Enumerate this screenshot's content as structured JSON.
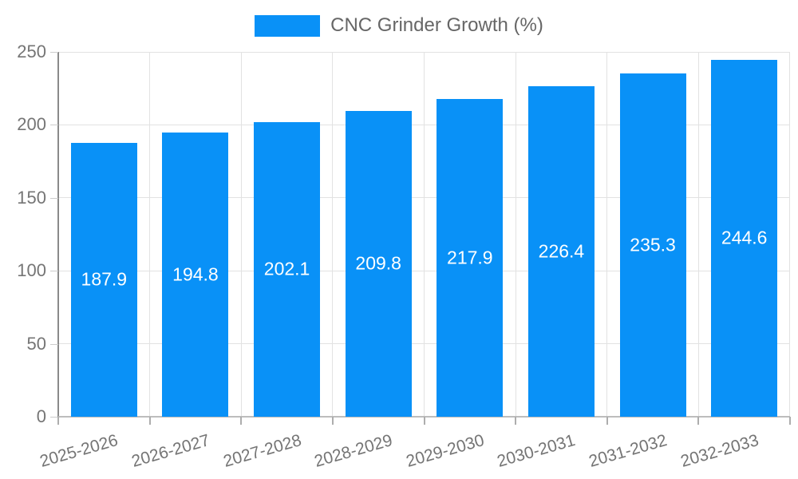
{
  "legend": {
    "label": "CNC Grinder Growth (%)",
    "swatch_color": "#0991f7"
  },
  "chart_data": {
    "type": "bar",
    "title": "CNC Grinder Growth (%)",
    "categories": [
      "2025-2026",
      "2026-2027",
      "2027-2028",
      "2028-2029",
      "2029-2030",
      "2030-2031",
      "2031-2032",
      "2032-2033"
    ],
    "series": [
      {
        "name": "CNC Grinder Growth (%)",
        "values": [
          187.9,
          194.8,
          202.1,
          209.8,
          217.9,
          226.4,
          235.3,
          244.6
        ]
      }
    ],
    "xlabel": "",
    "ylabel": "",
    "ylim": [
      0,
      250
    ],
    "yticks": [
      0,
      50,
      100,
      150,
      200,
      250
    ],
    "grid": true,
    "legend_position": "top",
    "value_labels": true
  },
  "colors": {
    "bar": "#0991f7",
    "grid": "#e2e2e2",
    "axis": "#8a8a8a",
    "baseline": "#bdbdbd",
    "tick_text": "#757575",
    "legend_text": "#666666",
    "value_text": "#ffffff",
    "background": "#ffffff"
  }
}
